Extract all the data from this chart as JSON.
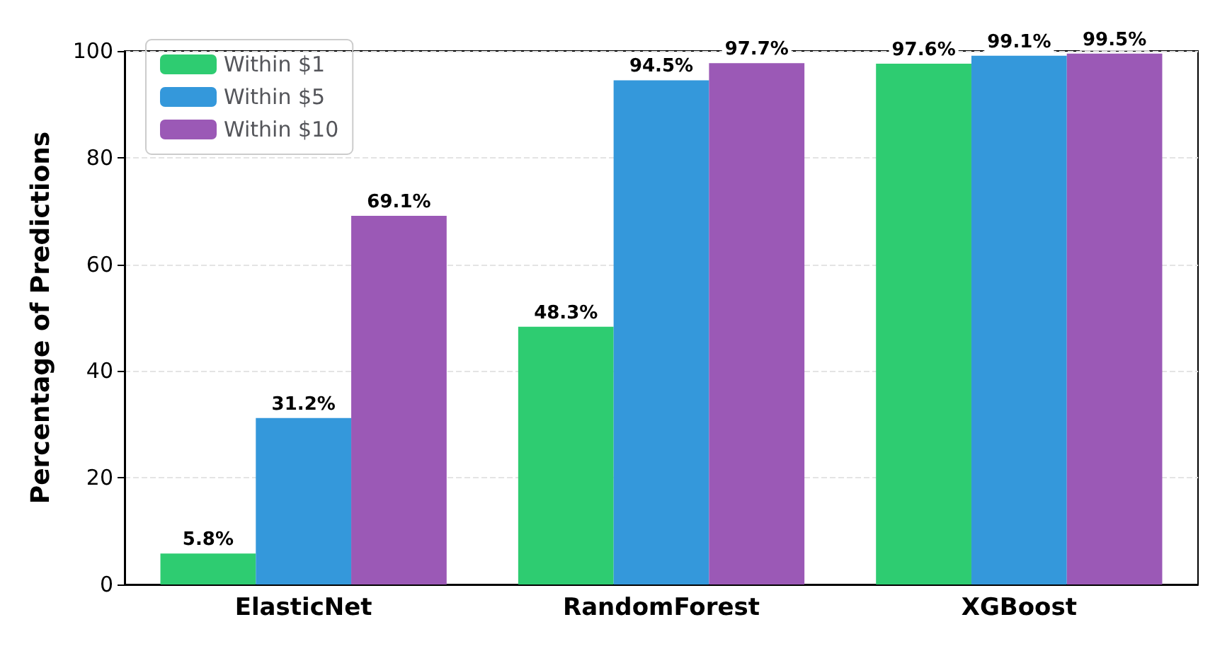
{
  "chart_data": {
    "type": "bar",
    "ylabel": "Percentage of Predictions",
    "categories": [
      "ElasticNet",
      "RandomForest",
      "XGBoost"
    ],
    "series": [
      {
        "name": "Within $1",
        "color": "#2ecc71",
        "values": [
          5.8,
          48.3,
          97.6
        ],
        "value_labels": [
          "5.8%",
          "48.3%",
          "97.6%"
        ]
      },
      {
        "name": "Within $5",
        "color": "#3498db",
        "values": [
          31.2,
          94.5,
          99.1
        ],
        "value_labels": [
          "31.2%",
          "94.5%",
          "99.1%"
        ]
      },
      {
        "name": "Within $10",
        "color": "#9b59b6",
        "values": [
          69.1,
          97.7,
          99.5
        ],
        "value_labels": [
          "69.1%",
          "97.7%",
          "99.5%"
        ]
      }
    ],
    "ylim": [
      0,
      100
    ],
    "yticks": [
      0,
      20,
      40,
      60,
      80,
      100
    ],
    "grid": "y",
    "legend": "top left"
  }
}
